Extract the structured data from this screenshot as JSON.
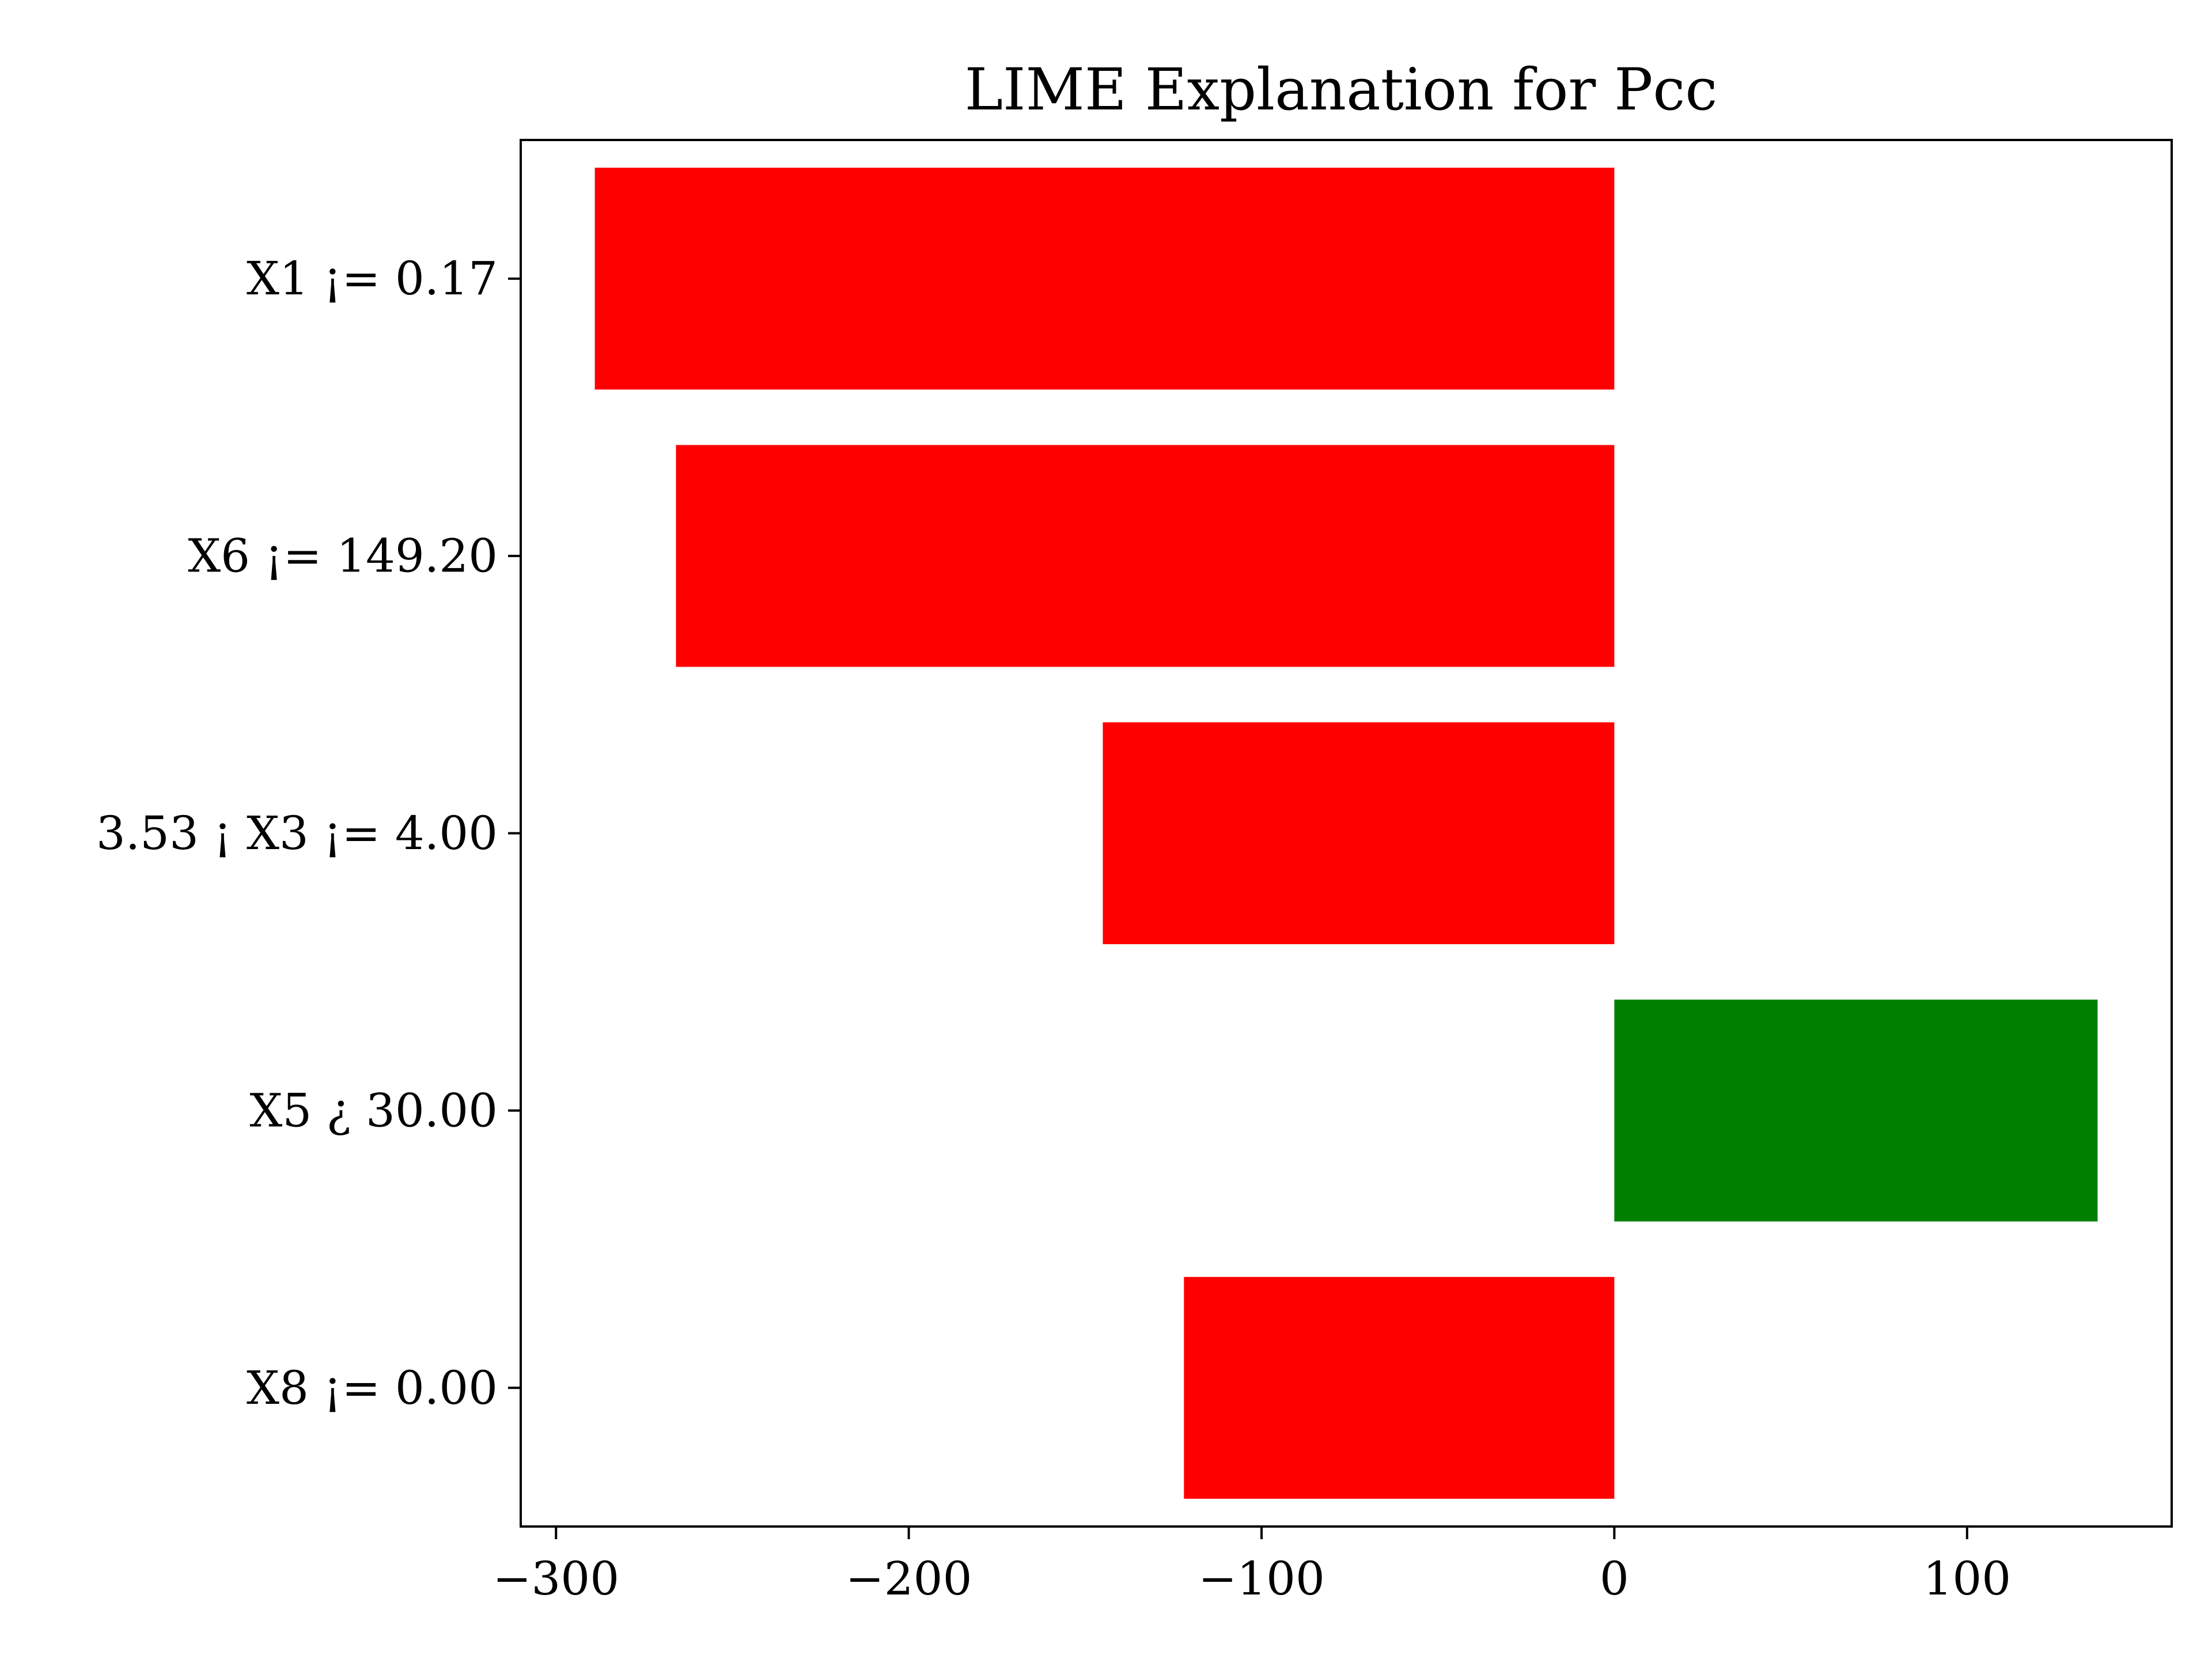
{
  "chart_data": {
    "type": "bar",
    "orientation": "horizontal",
    "title": "LIME Explanation for Pcc",
    "xlabel": "",
    "ylabel": "",
    "categories": [
      "X1 ¡= 0.17",
      "X6 ¡= 149.20",
      "3.53 ¡ X3 ¡= 4.00",
      "X5 ¿ 30.00",
      "X8 ¡= 0.00"
    ],
    "values": [
      -289,
      -266,
      -145,
      137,
      -122
    ],
    "colors": [
      "#ff0000",
      "#ff0000",
      "#ff0000",
      "#008000",
      "#ff0000"
    ],
    "xlim": [
      -310,
      158
    ],
    "xticks": [
      -300,
      -200,
      -100,
      0,
      100
    ],
    "xtick_labels": [
      "−300",
      "−200",
      "−100",
      "0",
      "100"
    ],
    "grid": false,
    "legend": "none"
  }
}
